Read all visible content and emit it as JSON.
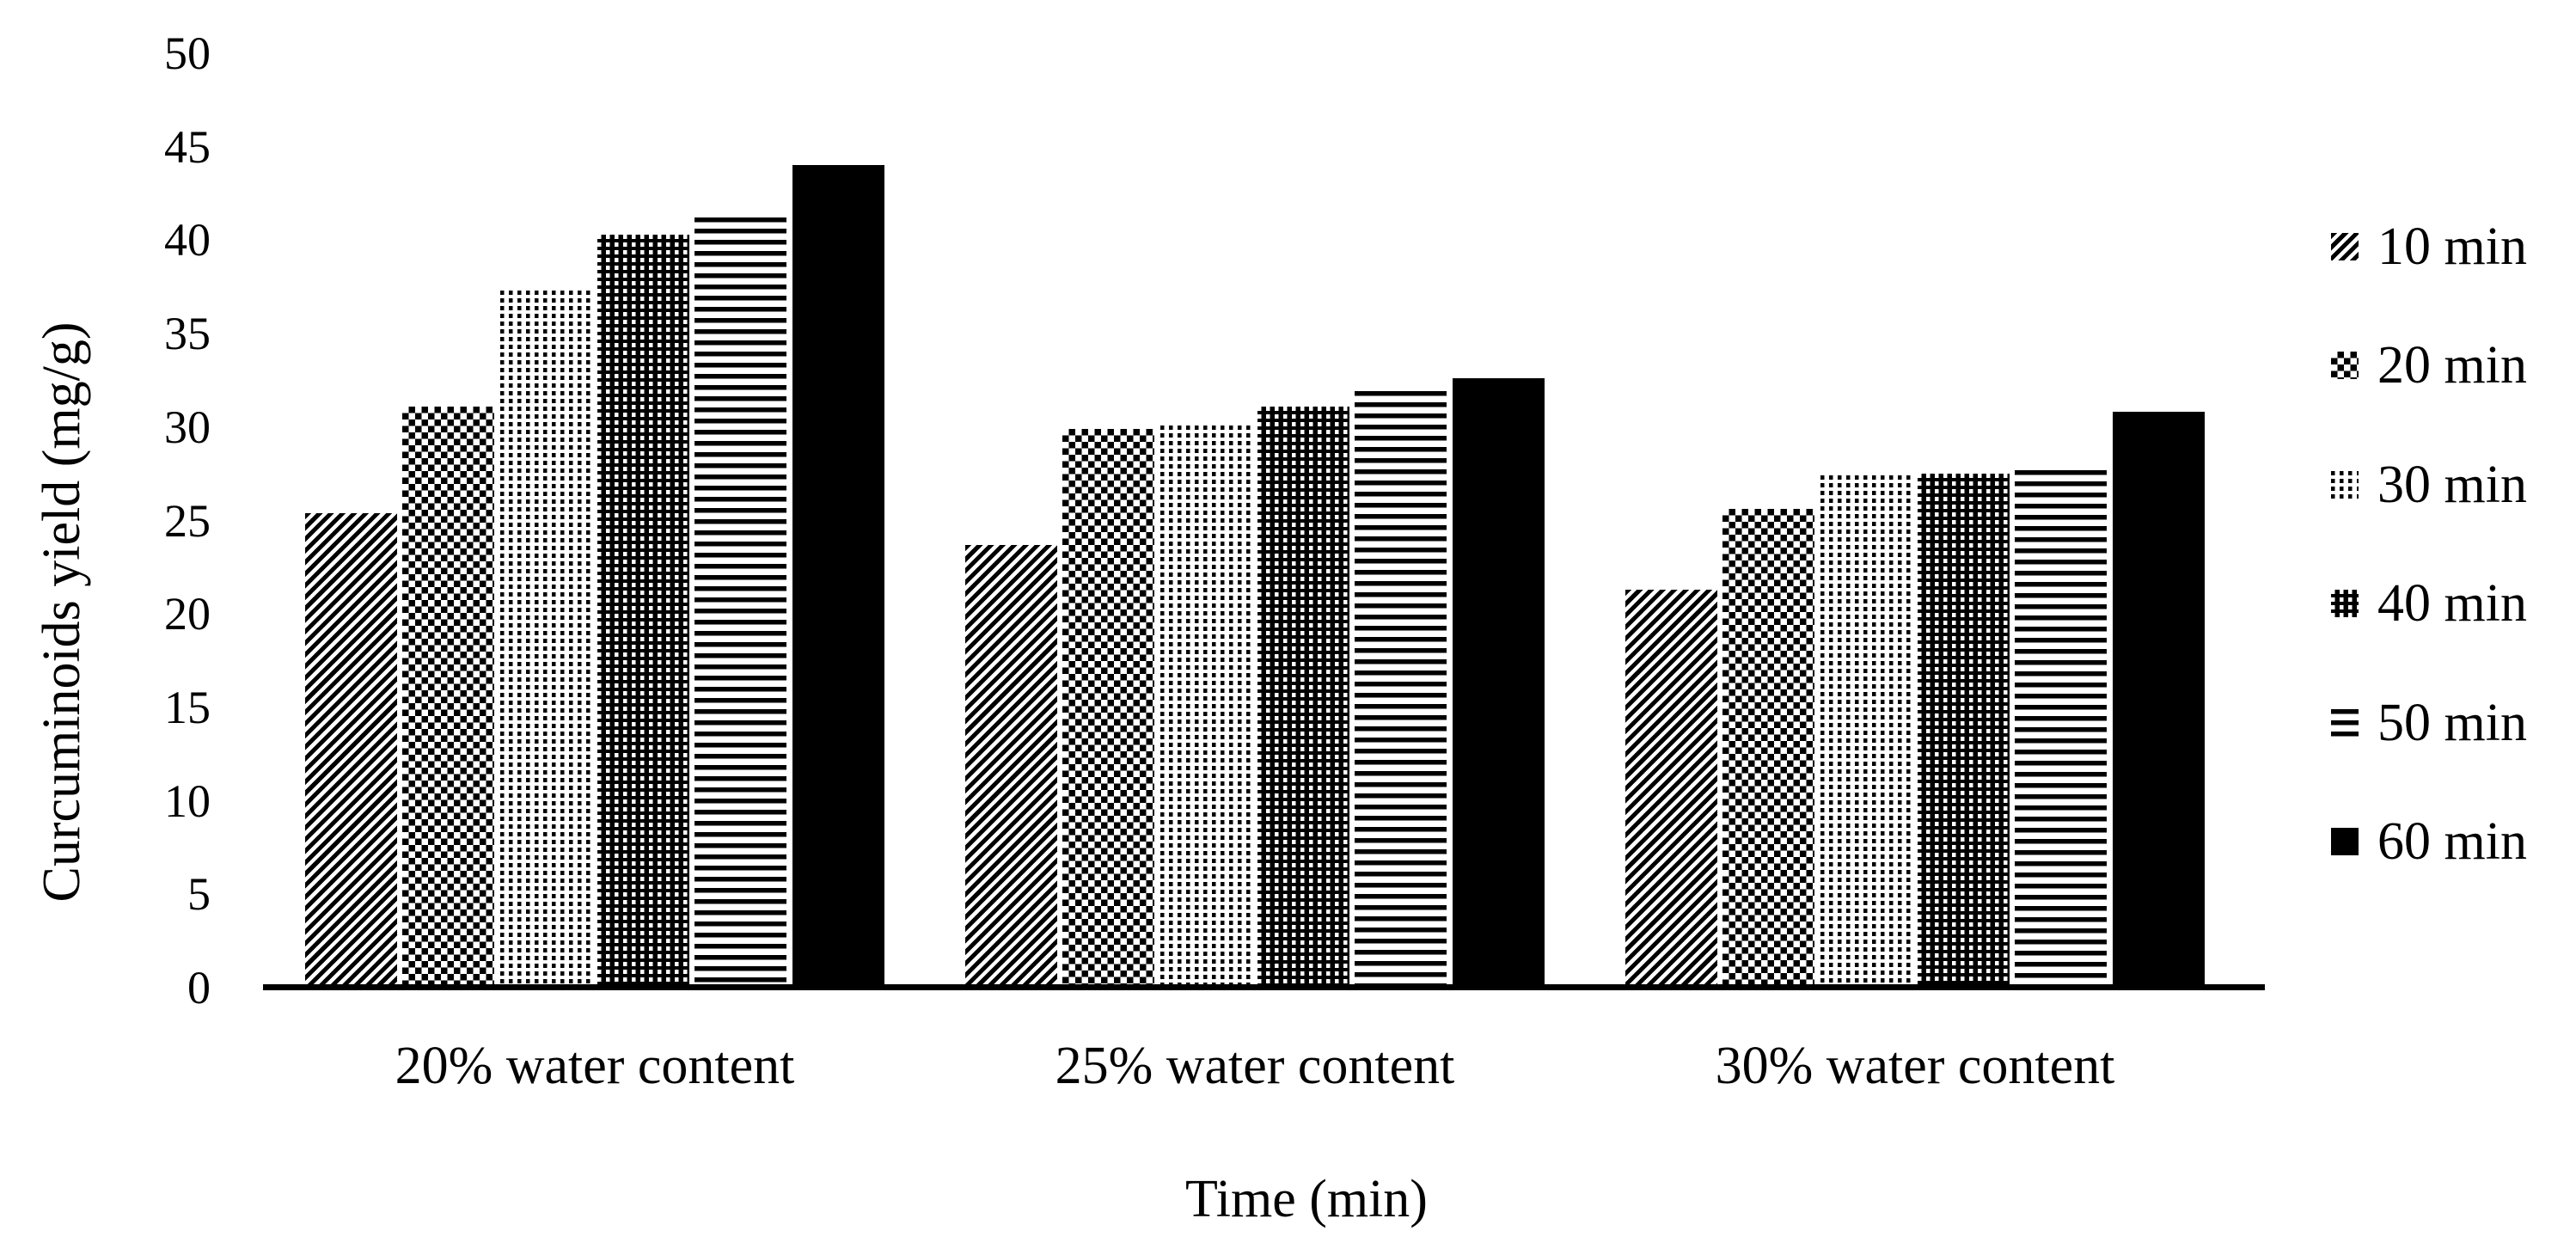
{
  "figure": {
    "background_color": "#ffffff",
    "ink_color": "#000000"
  },
  "chart_data": {
    "type": "bar",
    "title": "",
    "xlabel": "Time (min)",
    "ylabel": "Curcuminoids yield (mg/g)",
    "ylim": [
      0,
      50
    ],
    "yticks": [
      0,
      5,
      10,
      15,
      20,
      25,
      30,
      35,
      40,
      45,
      50
    ],
    "grid": false,
    "legend_position": "right",
    "categories": [
      "20% water content",
      "25% water content",
      "30% water content"
    ],
    "series": [
      {
        "name": "10 min",
        "pattern": "diagonal-stripes",
        "values": [
          25.4,
          23.7,
          21.3
        ]
      },
      {
        "name": "20 min",
        "pattern": "checkerboard",
        "values": [
          31.1,
          29.9,
          25.6
        ]
      },
      {
        "name": "30 min",
        "pattern": "dots",
        "values": [
          37.3,
          30.1,
          27.4
        ]
      },
      {
        "name": "40 min",
        "pattern": "inverse-grid",
        "values": [
          40.3,
          31.1,
          27.5
        ]
      },
      {
        "name": "50 min",
        "pattern": "horizontal-stripes",
        "values": [
          41.2,
          31.9,
          27.7
        ]
      },
      {
        "name": "60 min",
        "pattern": "solid",
        "values": [
          44.0,
          32.6,
          30.8
        ]
      }
    ]
  }
}
